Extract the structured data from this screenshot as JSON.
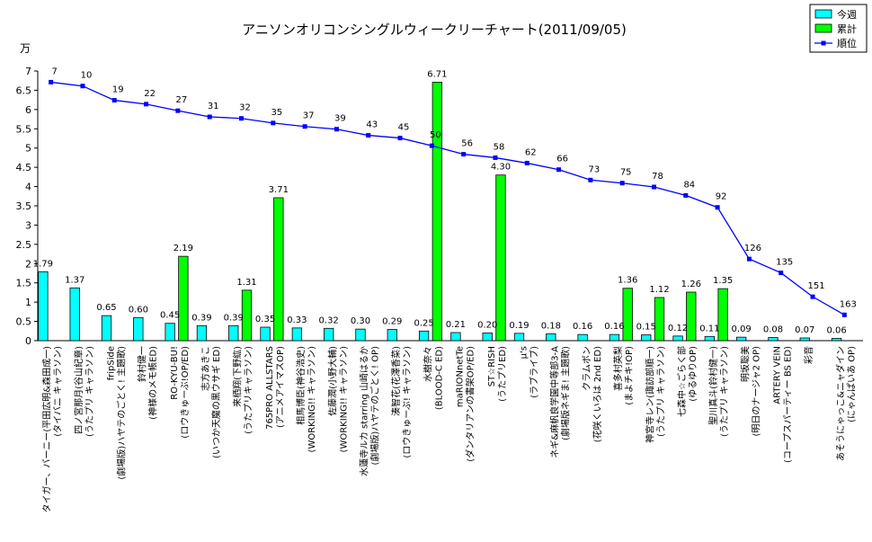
{
  "chart_data": {
    "type": "bar",
    "title": "アニソンオリコンシングルウィークリーチャート(2011/09/05)",
    "yunit": "万",
    "ylim": [
      0,
      7
    ],
    "yticks": [
      "0",
      "0.5",
      "1",
      "1.5",
      "2",
      "2.5",
      "3",
      "3.5",
      "4",
      "4.5",
      "5",
      "5.5",
      "6",
      "6.5",
      "7"
    ],
    "grid": false,
    "legend_position": "top-right",
    "colors": {
      "weekly": "#00ffff",
      "cumulative": "#00ff00",
      "rank": "#0000ff"
    },
    "categories": [
      [
        "タイガー、バーニー(平田広明&森田成一)",
        "(タイバニ キャラソン)"
      ],
      [
        "四ノ宮那月(谷山紀章)",
        "(うたプリ キャラソン)"
      ],
      [
        "fripSide",
        "(劇場版)ハヤテのごとく! 主題歌)"
      ],
      [
        "鈴村健一",
        "(神様のメモ帳ED)"
      ],
      [
        "RO-KYU-BU!",
        "(ロウきゅーぶ!OP/ED)"
      ],
      [
        "志方あきこ",
        "(いつか天魔の黒ウサギ ED)"
      ],
      [
        "来栖翔(下野紘)",
        "(うたプリキャラソン)"
      ],
      [
        "765PRO ALLSTARS",
        "(アニメアイマスOP)"
      ],
      [
        "相馬博臣(神谷浩史)",
        "(WORKING!! キャラソン)"
      ],
      [
        "佐藤潤(小野大輔)",
        "(WORKING!! キャラソン)"
      ],
      [
        "水蓮寺ルカ starring 山崎はるか",
        "(劇場版)ハヤテのごとく! OP)"
      ],
      [
        "湊智花(花澤香菜)",
        "(ロウきゅーぶ! キャラソン)"
      ],
      [
        "水樹奈々",
        "(BLOOD-C ED)"
      ],
      [
        "maRIONnetTe",
        "(ダンタリアンの書架OP/ED)"
      ],
      [
        "ST☆RISH",
        "(うたプリED)"
      ],
      [
        "μ's",
        "(ラブライブ)"
      ],
      [
        "ネギ&麻帆良学園中等部3-A",
        "(劇場版ネギま! 主題歌)"
      ],
      [
        "クラムボン",
        "(花咲くいろは 2nd ED)"
      ],
      [
        "喜多村英梨",
        "(まよチキ!OP)"
      ],
      [
        "神宮寺レン(諏訪部順一)",
        "(うたプリ キャラソン)"
      ],
      [
        "七森中☆ごらく部",
        "(ゆるゆりOP)"
      ],
      [
        "聖川真斗(鈴村健一)",
        "(うたプリ キャラソン)"
      ],
      [
        "明坂聡美",
        "(明日のナージャ2 OP)"
      ],
      [
        "ARTERY VEIN",
        "(コープスパーティー BS ED)"
      ],
      [
        "彩音",
        ""
      ],
      [
        "あそうにゃっこ&ニャダイン",
        "(にゃんぱいあ OP)"
      ]
    ],
    "series": [
      {
        "name": "今週",
        "type": "bar",
        "values": [
          1.79,
          1.37,
          0.65,
          0.6,
          0.45,
          0.39,
          0.39,
          0.35,
          0.33,
          0.32,
          0.3,
          0.29,
          0.25,
          0.21,
          0.2,
          0.19,
          0.18,
          0.16,
          0.16,
          0.15,
          0.12,
          0.11,
          0.09,
          0.08,
          0.07,
          0.06
        ],
        "labels": [
          "1.79",
          "1.37",
          "0.65",
          "0.60",
          "0.45",
          "0.39",
          "0.39",
          "0.35",
          "0.33",
          "0.32",
          "0.30",
          "0.29",
          "0.25",
          "0.21",
          "0.20",
          "0.19",
          "0.18",
          "0.16",
          "0.16",
          "0.15",
          "0.12",
          "0.11",
          "0.09",
          "0.08",
          "0.07",
          "0.06"
        ]
      },
      {
        "name": "累計",
        "type": "bar",
        "values": [
          null,
          null,
          null,
          null,
          2.19,
          null,
          1.31,
          3.71,
          null,
          null,
          null,
          null,
          6.71,
          null,
          4.3,
          null,
          null,
          null,
          1.36,
          1.12,
          1.26,
          1.35,
          null,
          null,
          null,
          null
        ],
        "labels": [
          "",
          "",
          "",
          "",
          "2.19",
          "",
          "1.31",
          "3.71",
          "",
          "",
          "",
          "",
          "6.71",
          "",
          "4.30",
          "",
          "",
          "",
          "1.36",
          "1.12",
          "1.26",
          "1.35",
          "",
          "",
          "",
          ""
        ]
      },
      {
        "name": "順位",
        "type": "line",
        "values": [
          7,
          10,
          19,
          22,
          27,
          31,
          32,
          35,
          37,
          39,
          43,
          45,
          50,
          56,
          58,
          62,
          66,
          73,
          75,
          78,
          84,
          92,
          126,
          135,
          151,
          163
        ],
        "axis_values": [
          6.71,
          6.61,
          6.24,
          6.14,
          5.97,
          5.81,
          5.77,
          5.65,
          5.56,
          5.49,
          5.33,
          5.26,
          5.06,
          4.84,
          4.75,
          4.61,
          4.44,
          4.17,
          4.09,
          3.99,
          3.77,
          3.46,
          2.12,
          1.76,
          1.14,
          0.67
        ]
      }
    ]
  }
}
